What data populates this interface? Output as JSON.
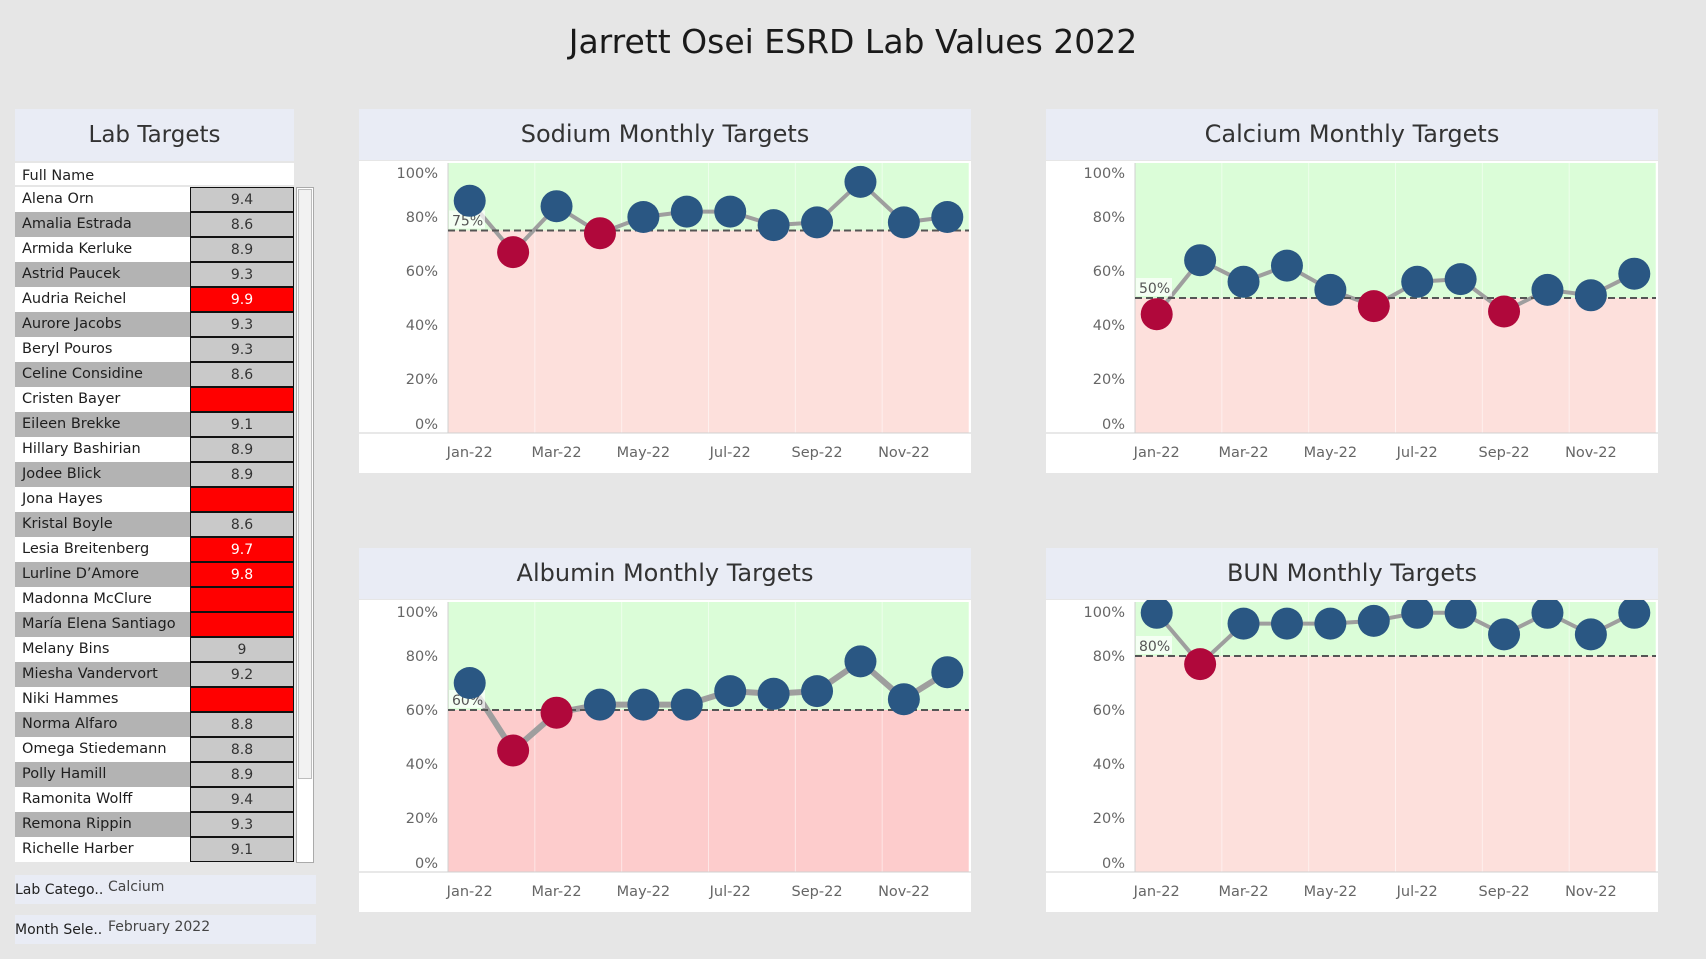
{
  "page": {
    "title": "Jarrett Osei ESRD Lab Values 2022"
  },
  "lab_targets": {
    "title": "Lab Targets",
    "column_header": "Full Name",
    "rows": [
      {
        "name": "Alena Orn",
        "value": "9.4",
        "flag": false
      },
      {
        "name": "Amalia Estrada",
        "value": "8.6",
        "flag": false
      },
      {
        "name": "Armida Kerluke",
        "value": "8.9",
        "flag": false
      },
      {
        "name": "Astrid Paucek",
        "value": "9.3",
        "flag": false
      },
      {
        "name": "Audria Reichel",
        "value": "9.9",
        "flag": true
      },
      {
        "name": "Aurore Jacobs",
        "value": "9.3",
        "flag": false
      },
      {
        "name": "Beryl Pouros",
        "value": "9.3",
        "flag": false
      },
      {
        "name": "Celine Considine",
        "value": "8.6",
        "flag": false
      },
      {
        "name": "Cristen Bayer",
        "value": "",
        "flag": true
      },
      {
        "name": "Eileen Brekke",
        "value": "9.1",
        "flag": false
      },
      {
        "name": "Hillary Bashirian",
        "value": "8.9",
        "flag": false
      },
      {
        "name": "Jodee Blick",
        "value": "8.9",
        "flag": false
      },
      {
        "name": "Jona Hayes",
        "value": "",
        "flag": true
      },
      {
        "name": "Kristal Boyle",
        "value": "8.6",
        "flag": false
      },
      {
        "name": "Lesia Breitenberg",
        "value": "9.7",
        "flag": true
      },
      {
        "name": "Lurline D’Amore",
        "value": "9.8",
        "flag": true
      },
      {
        "name": "Madonna McClure",
        "value": "",
        "flag": true
      },
      {
        "name": "María Elena Santiago",
        "value": "",
        "flag": true
      },
      {
        "name": "Melany Bins",
        "value": "9",
        "flag": false
      },
      {
        "name": "Miesha Vandervort",
        "value": "9.2",
        "flag": false
      },
      {
        "name": "Niki Hammes",
        "value": "",
        "flag": true
      },
      {
        "name": "Norma Alfaro",
        "value": "8.8",
        "flag": false
      },
      {
        "name": "Omega Stiedemann",
        "value": "8.8",
        "flag": false
      },
      {
        "name": "Polly Hamill",
        "value": "8.9",
        "flag": false
      },
      {
        "name": "Ramonita Wolff",
        "value": "9.4",
        "flag": false
      },
      {
        "name": "Remona Rippin",
        "value": "9.3",
        "flag": false
      },
      {
        "name": "Richelle Harber",
        "value": "9.1",
        "flag": false
      }
    ]
  },
  "filters": [
    {
      "label": "Lab Catego..",
      "value": "Calcium"
    },
    {
      "label": "Month Sele..",
      "value": "February 2022"
    }
  ],
  "colors": {
    "flag_red": "#ff0000",
    "cell_gray": "#c9c9c9",
    "row_gray": "#b3b3b3",
    "above": "#dbfdd8",
    "below": "#fddcda",
    "point_ok": "#2a5783",
    "point_bad": "#b0083b",
    "line": "#9e9e9e",
    "accent": "#e9ecf5"
  },
  "chart_data": [
    {
      "type": "line",
      "title": "Sodium Monthly Targets",
      "x": [
        "Jan-22",
        "Feb-22",
        "Mar-22",
        "Apr-22",
        "May-22",
        "Jun-22",
        "Jul-22",
        "Aug-22",
        "Sep-22",
        "Oct-22",
        "Nov-22",
        "Dec-22"
      ],
      "x_tick_labels": [
        "Jan-22",
        "Mar-22",
        "May-22",
        "Jul-22",
        "Sep-22",
        "Nov-22"
      ],
      "values": [
        86,
        67,
        84,
        74,
        80,
        82,
        82,
        77,
        78,
        93,
        78,
        80
      ],
      "target": 75,
      "target_label": "75%",
      "ylim": [
        0,
        100
      ],
      "y_ticks": [
        "0%",
        "20%",
        "40%",
        "60%",
        "80%",
        "100%"
      ],
      "below_target_color": "#fde0dc",
      "above_target_color": "#dbfdd8"
    },
    {
      "type": "line",
      "title": "Calcium Monthly Targets",
      "x": [
        "Jan-22",
        "Feb-22",
        "Mar-22",
        "Apr-22",
        "May-22",
        "Jun-22",
        "Jul-22",
        "Aug-22",
        "Sep-22",
        "Oct-22",
        "Nov-22",
        "Dec-22"
      ],
      "x_tick_labels": [
        "Jan-22",
        "Mar-22",
        "May-22",
        "Jul-22",
        "Sep-22",
        "Nov-22"
      ],
      "values": [
        44,
        64,
        56,
        62,
        53,
        47,
        56,
        57,
        45,
        53,
        51,
        59
      ],
      "target": 50,
      "target_label": "50%",
      "ylim": [
        0,
        100
      ],
      "y_ticks": [
        "0%",
        "20%",
        "40%",
        "60%",
        "80%",
        "100%"
      ],
      "below_target_color": "#fde0dc",
      "above_target_color": "#dbfdd8"
    },
    {
      "type": "line",
      "title": "Albumin Monthly Targets",
      "x": [
        "Jan-22",
        "Feb-22",
        "Mar-22",
        "Apr-22",
        "May-22",
        "Jun-22",
        "Jul-22",
        "Aug-22",
        "Sep-22",
        "Oct-22",
        "Nov-22",
        "Dec-22"
      ],
      "x_tick_labels": [
        "Jan-22",
        "Mar-22",
        "May-22",
        "Jul-22",
        "Sep-22",
        "Nov-22"
      ],
      "values": [
        70,
        45,
        59,
        62,
        62,
        62,
        67,
        66,
        67,
        78,
        64,
        74
      ],
      "target": 60,
      "target_label": "60%",
      "ylim": [
        0,
        100
      ],
      "y_ticks": [
        "0%",
        "20%",
        "40%",
        "60%",
        "80%",
        "100%"
      ],
      "below_target_color": "#fdcccc",
      "above_target_color": "#dbfdd8"
    },
    {
      "type": "line",
      "title": "BUN Monthly Targets",
      "x": [
        "Jan-22",
        "Feb-22",
        "Mar-22",
        "Apr-22",
        "May-22",
        "Jun-22",
        "Jul-22",
        "Aug-22",
        "Sep-22",
        "Oct-22",
        "Nov-22",
        "Dec-22"
      ],
      "x_tick_labels": [
        "Jan-22",
        "Mar-22",
        "May-22",
        "Jul-22",
        "Sep-22",
        "Nov-22"
      ],
      "values": [
        96,
        77,
        92,
        92,
        92,
        93,
        96,
        96,
        88,
        96,
        88,
        96
      ],
      "target": 80,
      "target_label": "80%",
      "ylim": [
        0,
        100
      ],
      "y_ticks": [
        "0%",
        "20%",
        "40%",
        "60%",
        "80%",
        "100%"
      ],
      "below_target_color": "#fde0dc",
      "above_target_color": "#dbfdd8"
    }
  ]
}
